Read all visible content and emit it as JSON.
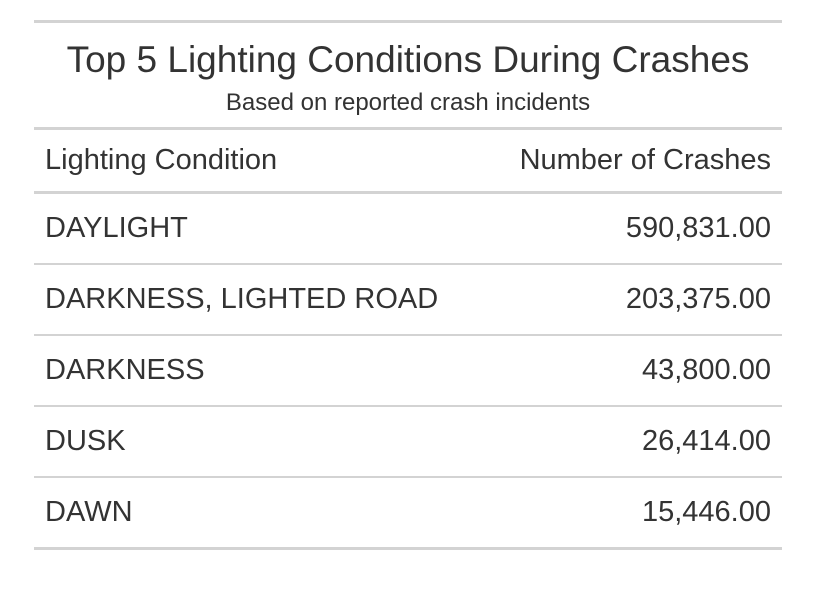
{
  "chart_data": {
    "type": "table",
    "title": "Top 5 Lighting Conditions During Crashes",
    "subtitle": "Based on reported crash incidents",
    "columns": [
      "Lighting Condition",
      "Number of Crashes"
    ],
    "rows": [
      {
        "condition": "DAYLIGHT",
        "crashes": "590,831.00"
      },
      {
        "condition": "DARKNESS, LIGHTED ROAD",
        "crashes": "203,375.00"
      },
      {
        "condition": "DARKNESS",
        "crashes": "43,800.00"
      },
      {
        "condition": "DUSK",
        "crashes": "26,414.00"
      },
      {
        "condition": "DAWN",
        "crashes": "15,446.00"
      }
    ]
  }
}
